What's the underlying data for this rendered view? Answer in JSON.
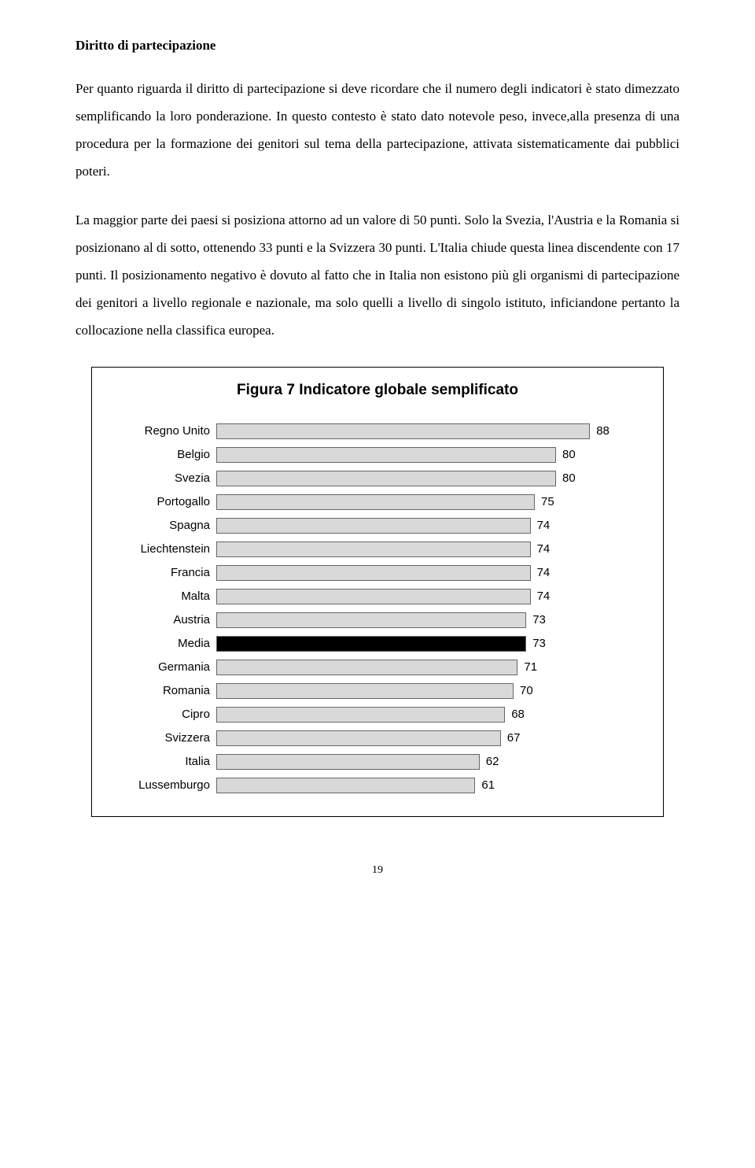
{
  "heading": "Diritto di partecipazione",
  "paragraphs": [
    "Per quanto riguarda il diritto di partecipazione si deve ricordare che il numero degli indicatori è stato dimezzato semplificando la loro ponderazione. In questo contesto è stato dato notevole peso, invece,alla presenza di una procedura per la formazione dei genitori sul tema della partecipazione, attivata sistematicamente dai pubblici poteri.",
    "La maggior parte dei paesi si posiziona attorno ad un valore di 50 punti. Solo la Svezia, l'Austria e la Romania si posizionano al di sotto, ottenendo 33 punti e la Svizzera 30 punti. L'Italia chiude questa linea discendente con 17 punti. Il posizionamento negativo è dovuto al fatto che in Italia non esistono più gli organismi di partecipazione dei genitori a livello regionale e nazionale, ma solo quelli a livello di singolo istituto, inficiandone pertanto la collocazione nella classifica europea."
  ],
  "chart": {
    "type": "bar",
    "title": "Figura 7 Indicatore globale semplificato",
    "max": 100,
    "bar_color_default": "#d9d9d9",
    "bar_color_highlight": "#000000",
    "bar_border": "#666666",
    "label_fontsize": 15,
    "title_fontsize": 19,
    "rows": [
      {
        "label": "Regno Unito",
        "value": 88,
        "highlight": false
      },
      {
        "label": "Belgio",
        "value": 80,
        "highlight": false
      },
      {
        "label": "Svezia",
        "value": 80,
        "highlight": false
      },
      {
        "label": "Portogallo",
        "value": 75,
        "highlight": false
      },
      {
        "label": "Spagna",
        "value": 74,
        "highlight": false
      },
      {
        "label": "Liechtenstein",
        "value": 74,
        "highlight": false
      },
      {
        "label": "Francia",
        "value": 74,
        "highlight": false
      },
      {
        "label": "Malta",
        "value": 74,
        "highlight": false
      },
      {
        "label": "Austria",
        "value": 73,
        "highlight": false
      },
      {
        "label": "Media",
        "value": 73,
        "highlight": true
      },
      {
        "label": "Germania",
        "value": 71,
        "highlight": false
      },
      {
        "label": "Romania",
        "value": 70,
        "highlight": false
      },
      {
        "label": "Cipro",
        "value": 68,
        "highlight": false
      },
      {
        "label": "Svizzera",
        "value": 67,
        "highlight": false
      },
      {
        "label": "Italia",
        "value": 62,
        "highlight": false
      },
      {
        "label": "Lussemburgo",
        "value": 61,
        "highlight": false
      }
    ]
  },
  "page_number": "19"
}
